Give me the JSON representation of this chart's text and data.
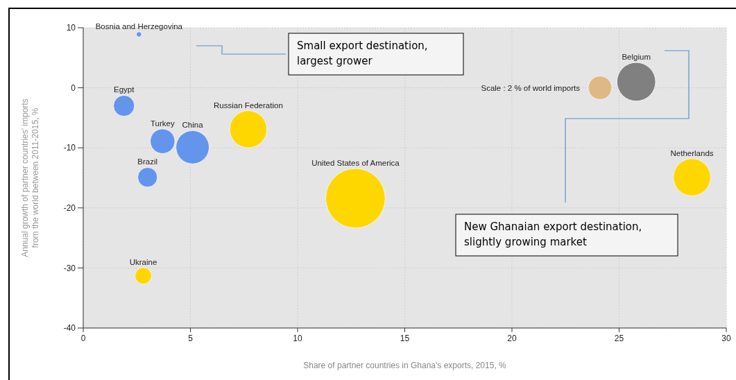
{
  "chart_data": {
    "type": "bubble",
    "xlabel": "Share of partner countries in Ghana's exports, 2015, %",
    "ylabel": "Annual growth of partner countries' imports\nfrom the world between 2011-2015, %",
    "xlim": [
      0,
      30
    ],
    "xticks": [
      0,
      5,
      10,
      15,
      20,
      25,
      30
    ],
    "ylim": [
      -40,
      10
    ],
    "yticks": [
      -40,
      -30,
      -20,
      -10,
      0,
      10
    ],
    "grid": true,
    "size_legend": [
      {
        "value": 2,
        "label": "Scale : 2 % of world imports"
      }
    ],
    "series": [
      {
        "name": "Bosnia and Herzegovina",
        "color": "#6495ed",
        "x": [
          2.6
        ],
        "values": [
          8.9
        ],
        "sizes": [
          0.1
        ]
      },
      {
        "name": "Egypt",
        "color": "#6495ed",
        "x": [
          1.9
        ],
        "values": [
          -3.0
        ],
        "sizes": [
          1.6
        ]
      },
      {
        "name": "Turkey",
        "color": "#6495ed",
        "x": [
          3.7
        ],
        "values": [
          -8.9
        ],
        "sizes": [
          2.2
        ]
      },
      {
        "name": "China",
        "color": "#6495ed",
        "x": [
          5.1
        ],
        "values": [
          -9.9
        ],
        "sizes": [
          4.0
        ]
      },
      {
        "name": "Brazil",
        "color": "#6495ed",
        "x": [
          3.0
        ],
        "values": [
          -14.9
        ],
        "sizes": [
          1.4
        ]
      },
      {
        "name": "Russian Federation",
        "color": "#ffd700",
        "x": [
          7.7
        ],
        "values": [
          -6.9
        ],
        "sizes": [
          5.0
        ]
      },
      {
        "name": "United States of America",
        "color": "#ffd700",
        "x": [
          12.7
        ],
        "values": [
          -18.4
        ],
        "sizes": [
          12.8
        ]
      },
      {
        "name": "Ukraine",
        "color": "#ffd700",
        "x": [
          2.8
        ],
        "values": [
          -31.3
        ],
        "sizes": [
          1.0
        ]
      },
      {
        "name": "Netherlands",
        "color": "#ffd700",
        "x": [
          28.4
        ],
        "values": [
          -14.9
        ],
        "sizes": [
          5.0
        ]
      },
      {
        "name": "Belgium",
        "color": "#808080",
        "x": [
          25.8
        ],
        "values": [
          1.0
        ],
        "sizes": [
          5.4
        ]
      }
    ],
    "annotations": [
      "Small export destination,\nlargest grower",
      "New Ghanaian export destination,\nslightly growing market"
    ]
  }
}
